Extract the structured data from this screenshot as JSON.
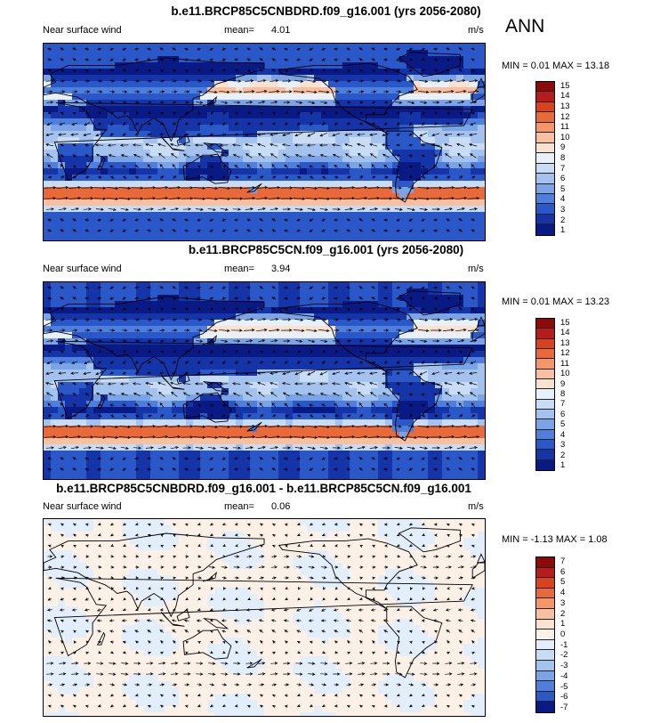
{
  "season_label": "ANN",
  "panels": [
    {
      "title": "b.e11.BRCP85C5CNBDRD.f09_g16.001 (yrs 2056-2080)",
      "variable": "Near surface wind",
      "mean_label": "mean=",
      "mean_value": "4.01",
      "units": "m/s",
      "minmax": "MIN =  0.01 MAX =  13.18",
      "colorbar_labels": [
        "15",
        "14",
        "13",
        "12",
        "11",
        "10",
        "9",
        "8",
        "7",
        "6",
        "5",
        "4",
        "3",
        "2",
        "1"
      ],
      "colors": [
        "#8b0a0a",
        "#b71c1c",
        "#d8431c",
        "#e86a3a",
        "#f4956a",
        "#f9c0a0",
        "#fbe1d0",
        "#e8f1fb",
        "#c9dcf5",
        "#a4c2ee",
        "#7aa4e6",
        "#4f7fdd",
        "#2b58c8",
        "#1434a8",
        "#0a1a85"
      ]
    },
    {
      "title": "b.e11.BRCP85C5CN.f09_g16.001 (yrs 2056-2080)",
      "variable": "Near surface wind",
      "mean_label": "mean=",
      "mean_value": "3.94",
      "units": "m/s",
      "minmax": "MIN =  0.01 MAX =  13.23",
      "colorbar_labels": [
        "15",
        "14",
        "13",
        "12",
        "11",
        "10",
        "9",
        "8",
        "7",
        "6",
        "5",
        "4",
        "3",
        "2",
        "1"
      ],
      "colors": [
        "#8b0a0a",
        "#b71c1c",
        "#d8431c",
        "#e86a3a",
        "#f4956a",
        "#f9c0a0",
        "#fbe1d0",
        "#e8f1fb",
        "#c9dcf5",
        "#a4c2ee",
        "#7aa4e6",
        "#4f7fdd",
        "#2b58c8",
        "#1434a8",
        "#0a1a85"
      ]
    },
    {
      "title": "b.e11.BRCP85C5CNBDRD.f09_g16.001 - b.e11.BRCP85C5CN.f09_g16.001",
      "variable": "Near surface wind",
      "mean_label": "mean=",
      "mean_value": "0.06",
      "units": "m/s",
      "minmax": "MIN = -1.13 MAX =  1.08",
      "colorbar_labels": [
        "7",
        "6",
        "5",
        "4",
        "3",
        "2",
        "1",
        "0",
        "-1",
        "-2",
        "-3",
        "-4",
        "-5",
        "-6",
        "-7"
      ],
      "colors": [
        "#8b0a0a",
        "#b71c1c",
        "#d8431c",
        "#e86a3a",
        "#f4956a",
        "#f9c0a0",
        "#fbe1d0",
        "#fdf0e6",
        "#e2eefb",
        "#c9dcf5",
        "#a4c2ee",
        "#7aa4e6",
        "#4f7fdd",
        "#2b58c8",
        "#0a1a85"
      ]
    }
  ]
}
